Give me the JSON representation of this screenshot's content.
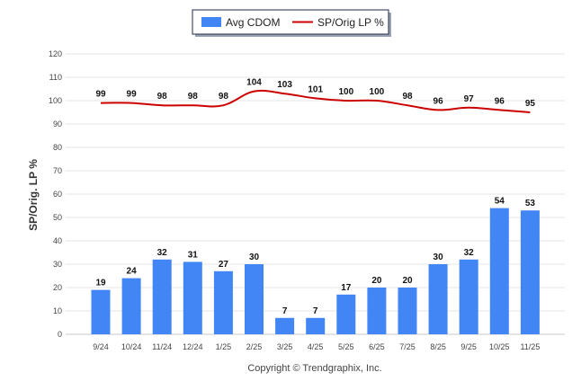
{
  "chart_data": {
    "type": "bar",
    "categories": [
      "9/24",
      "10/24",
      "11/24",
      "12/24",
      "1/25",
      "2/25",
      "3/25",
      "4/25",
      "5/25",
      "6/25",
      "7/25",
      "8/25",
      "9/25",
      "10/25",
      "11/25"
    ],
    "series": [
      {
        "name": "Avg CDOM",
        "type": "bar",
        "color": "#4285f4",
        "values": [
          19,
          24,
          32,
          31,
          27,
          30,
          7,
          7,
          17,
          20,
          20,
          30,
          32,
          54,
          53
        ]
      },
      {
        "name": "SP/Orig LP %",
        "type": "line",
        "color": "#cc0000",
        "values": [
          99,
          99,
          98,
          98,
          98,
          104,
          103,
          101,
          100,
          100,
          98,
          96,
          97,
          96,
          95
        ]
      }
    ],
    "ylabel": "SP/Orig. LP %",
    "ylim": [
      0,
      120
    ],
    "yticks": [
      0,
      10,
      20,
      30,
      40,
      50,
      60,
      70,
      80,
      90,
      100,
      110,
      120
    ],
    "grid": true,
    "legend_position": "top-center"
  },
  "copyright": "Copyright © Trendgraphix, Inc."
}
